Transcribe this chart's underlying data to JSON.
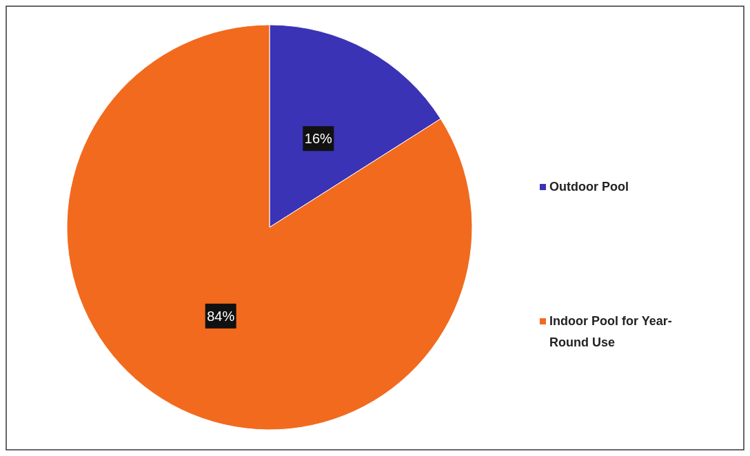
{
  "chart_data": {
    "type": "pie",
    "categories": [
      "Outdoor Pool",
      "Indoor Pool for Year-Round Use"
    ],
    "values": [
      16,
      84
    ],
    "colors": [
      "#3a33b5",
      "#f26a1e"
    ],
    "value_labels": [
      "16%",
      "84%"
    ],
    "legend": "right"
  }
}
